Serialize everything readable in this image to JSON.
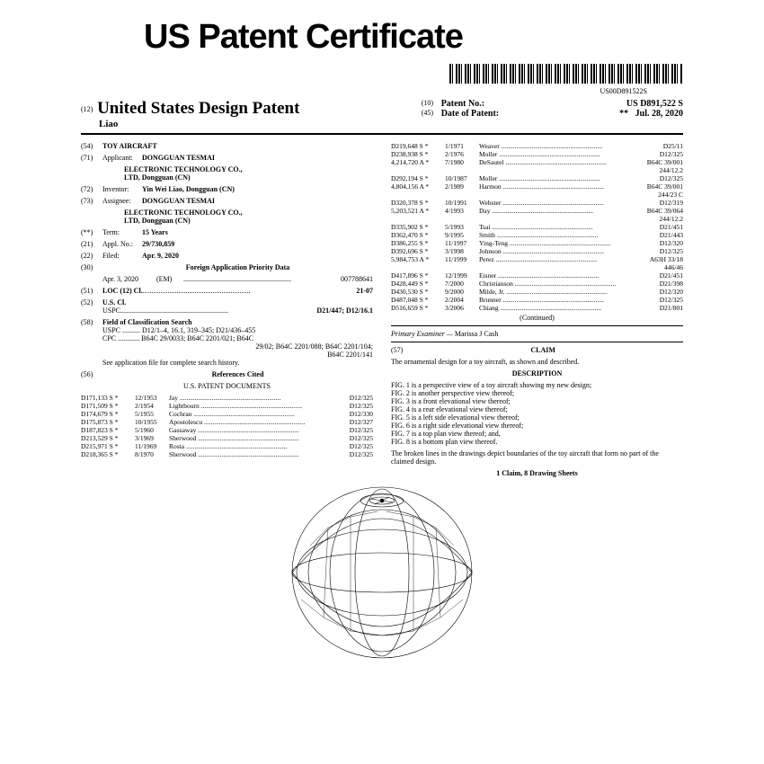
{
  "mainTitle": "US Patent Certificate",
  "barcodeLabel": "US00D891522S",
  "header": {
    "pre12": "(12)",
    "title": "United States Design Patent",
    "inventorLine": "Liao",
    "pre10": "(10)",
    "patentNoLabel": "Patent No.:",
    "patentNo": "US D891,522 S",
    "pre45": "(45)",
    "dateLabel": "Date of Patent:",
    "dateStars": "**",
    "date": "Jul. 28, 2020"
  },
  "left": {
    "f54": {
      "n": "(54)",
      "v": "TOY AIRCRAFT"
    },
    "f71": {
      "n": "(71)",
      "l": "Applicant:",
      "v1": "DONGGUAN TESMAI",
      "v2": "ELECTRONIC TECHNOLOGY CO.,",
      "v3": "LTD, Dongguan (CN)"
    },
    "f72": {
      "n": "(72)",
      "l": "Inventor:",
      "v": "Yin Wei Liao, Dongguan (CN)"
    },
    "f73": {
      "n": "(73)",
      "l": "Assignee:",
      "v1": "DONGGUAN TESMAI",
      "v2": "ELECTRONIC TECHNOLOGY CO.,",
      "v3": "LTD, Dongguan (CN)"
    },
    "fTerm": {
      "n": "(**)",
      "l": "Term:",
      "v": "15 Years"
    },
    "f21": {
      "n": "(21)",
      "l": "Appl. No.:",
      "v": "29/730,859"
    },
    "f22": {
      "n": "(22)",
      "l": "Filed:",
      "v": "Apr. 9, 2020"
    },
    "f30": {
      "n": "(30)",
      "v": "Foreign Application Priority Data"
    },
    "priority": {
      "date": "Apr. 3, 2020",
      "cc": "(EM)",
      "num": "007788641"
    },
    "f51": {
      "n": "(51)",
      "l": "LOC (12) Cl.",
      "v": "21-07"
    },
    "f52": {
      "n": "(52)",
      "l": "U.S. Cl."
    },
    "uspc": {
      "l": "USPC",
      "v": "D21/447; D12/16.1"
    },
    "f58": {
      "n": "(58)",
      "l": "Field of Classification Search"
    },
    "uspcSearch": "USPC .......... D12/1–4, 16.1, 319–345; D21/436–455",
    "cpcSearch1": "CPC ............ B64C 29/0033; B64C 2201/021; B64C",
    "cpcSearch2": "29/02; B64C 2201/088; B64C 2201/104;",
    "cpcSearch3": "B64C 2201/141",
    "seeApp": "See application file for complete search history.",
    "f56": {
      "n": "(56)",
      "v": "References Cited"
    },
    "refHeader": "U.S. PATENT DOCUMENTS",
    "refsLeft": [
      {
        "a": "D171,133 S *",
        "b": "12/1953",
        "c": "Jay",
        "d": "D12/325"
      },
      {
        "a": "D171,509 S *",
        "b": "2/1954",
        "c": "Lightbourn",
        "d": "D12/325"
      },
      {
        "a": "D174,679 S *",
        "b": "5/1955",
        "c": "Cochran",
        "d": "D12/330"
      },
      {
        "a": "D175,873 S *",
        "b": "10/1955",
        "c": "Apostolescu",
        "d": "D12/327"
      },
      {
        "a": "D187,823 S *",
        "b": "5/1960",
        "c": "Gassaway",
        "d": "D12/325"
      },
      {
        "a": "D213,529 S *",
        "b": "3/1969",
        "c": "Sherwood",
        "d": "D12/325"
      },
      {
        "a": "D215,971 S *",
        "b": "11/1969",
        "c": "Rosta",
        "d": "D12/325"
      },
      {
        "a": "D218,365 S *",
        "b": "8/1970",
        "c": "Sherwood",
        "d": "D12/325"
      }
    ]
  },
  "right": {
    "refsRight": [
      {
        "a": "D219,648 S *",
        "b": "1/1971",
        "c": "Weaver",
        "d": "D25/11"
      },
      {
        "a": "D238,938 S *",
        "b": "2/1976",
        "c": "Moller",
        "d": "D12/325"
      },
      {
        "a": "4,214,720 A *",
        "b": "7/1980",
        "c": "DeSautel",
        "d": "B64C 39/001"
      },
      {
        "a": "",
        "b": "",
        "c": "",
        "d": "244/12.2"
      },
      {
        "a": "D292,194 S *",
        "b": "10/1987",
        "c": "Moller",
        "d": "D12/325"
      },
      {
        "a": "4,804,156 A *",
        "b": "2/1989",
        "c": "Harmon",
        "d": "B64C 39/001"
      },
      {
        "a": "",
        "b": "",
        "c": "",
        "d": "244/23 C"
      },
      {
        "a": "D320,378 S *",
        "b": "10/1991",
        "c": "Webster",
        "d": "D12/319"
      },
      {
        "a": "5,203,521 A *",
        "b": "4/1993",
        "c": "Day",
        "d": "B64C 39/064"
      },
      {
        "a": "",
        "b": "",
        "c": "",
        "d": "244/12.2"
      },
      {
        "a": "D335,902 S *",
        "b": "5/1993",
        "c": "Tsai",
        "d": "D21/451"
      },
      {
        "a": "D362,470 S *",
        "b": "9/1995",
        "c": "Smith",
        "d": "D21/443"
      },
      {
        "a": "D386,255 S *",
        "b": "11/1997",
        "c": "Ying-Teng",
        "d": "D12/320"
      },
      {
        "a": "D392,696 S *",
        "b": "3/1998",
        "c": "Johnson",
        "d": "D12/325"
      },
      {
        "a": "5,984,753 A *",
        "b": "11/1999",
        "c": "Perez",
        "d": "A63H 33/18"
      },
      {
        "a": "",
        "b": "",
        "c": "",
        "d": "446/46"
      },
      {
        "a": "D417,896 S *",
        "b": "12/1999",
        "c": "Eisner",
        "d": "D21/451"
      },
      {
        "a": "D428,449 S *",
        "b": "7/2000",
        "c": "Christianson",
        "d": "D21/398"
      },
      {
        "a": "D430,530 S *",
        "b": "9/2000",
        "c": "Milde, Jr.",
        "d": "D12/320"
      },
      {
        "a": "D487,048 S *",
        "b": "2/2004",
        "c": "Brunner",
        "d": "D12/325"
      },
      {
        "a": "D516,659 S *",
        "b": "3/2006",
        "c": "Chiang",
        "d": "D21/801"
      }
    ],
    "continued": "(Continued)",
    "examinerLabel": "Primary Examiner —",
    "examiner": "Marissa J Cash",
    "f57": "(57)",
    "claimTitle": "CLAIM",
    "claimText": "The ornamental design for a toy aircraft, as shown and described.",
    "descTitle": "DESCRIPTION",
    "figs": [
      "FIG. 1 is a perspective view of a toy aircraft showing my new design;",
      "FIG. 2 is another perspective view thereof;",
      "FIG. 3 is a front elevational view thereof;",
      "FIG. 4 is a rear elevational view thereof;",
      "FIG. 5 is a left side elevational view thereof;",
      "FIG. 6 is a right side elevational view thereof;",
      "FIG. 7 is a top plan view thereof; and,",
      "FIG. 8 is a bottom plan view thereof."
    ],
    "brokenLines": "The broken lines in the drawings depict boundaries of the toy aircraft that form no part of the claimed design.",
    "claimCount": "1 Claim, 8 Drawing Sheets"
  }
}
